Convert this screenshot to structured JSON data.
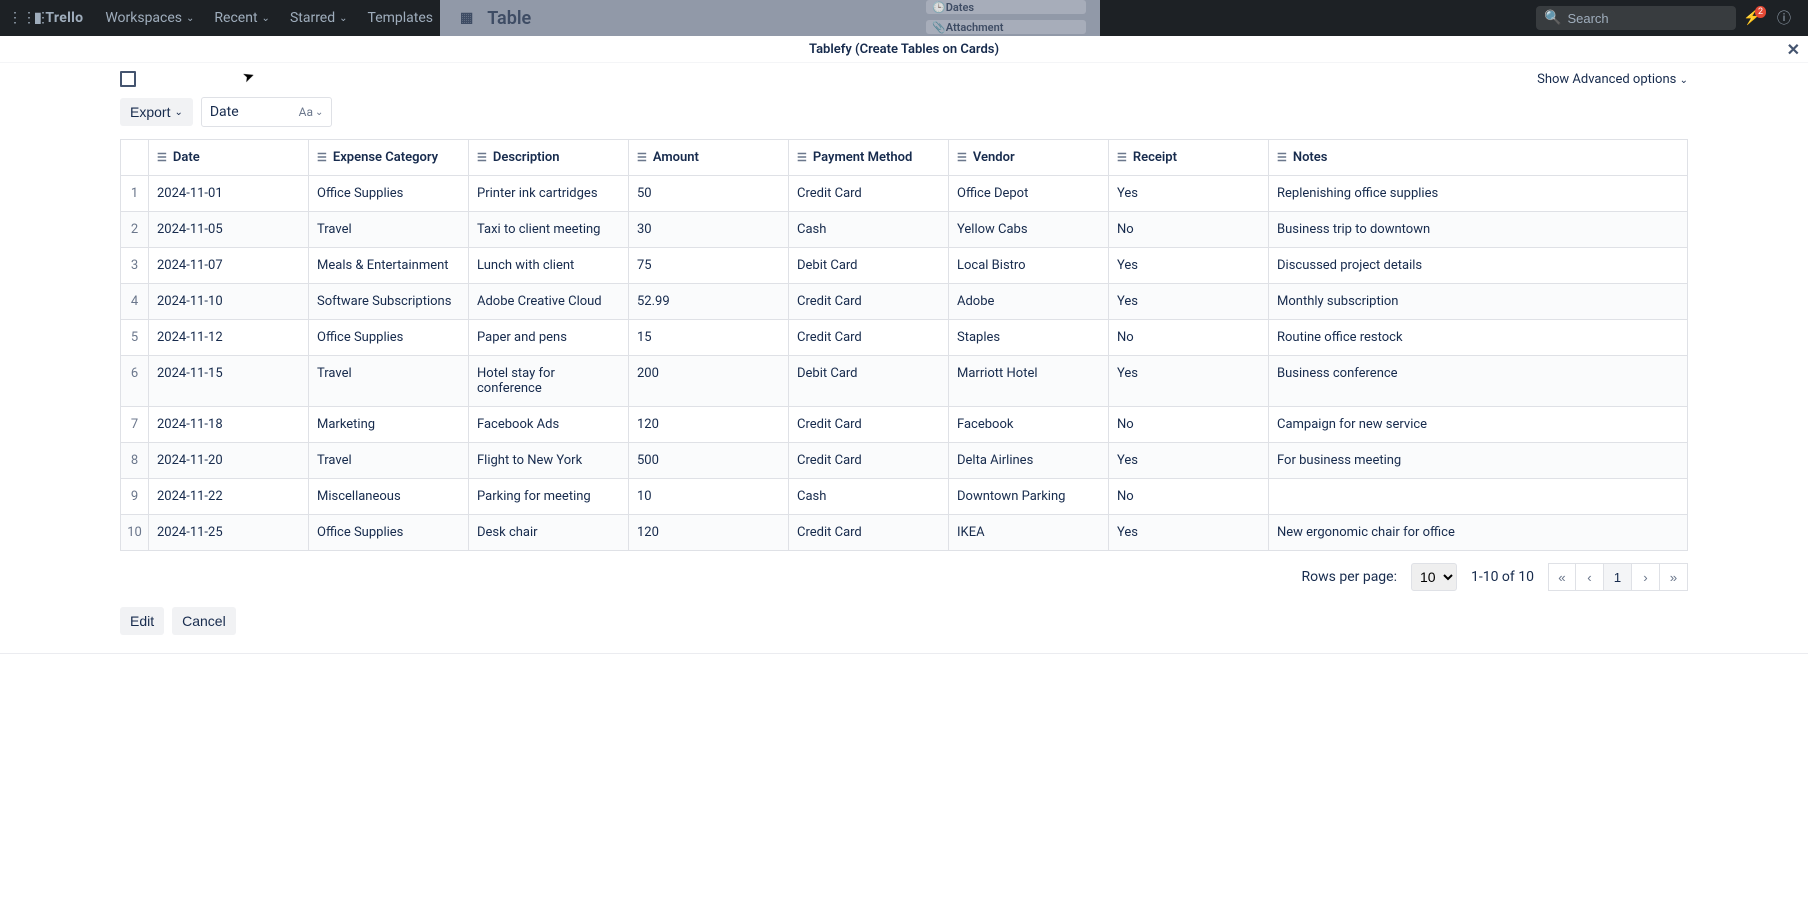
{
  "trello_nav": {
    "logo": "Trello",
    "items": [
      "Workspaces",
      "Recent",
      "Starred",
      "Templates"
    ],
    "search_placeholder": "Search",
    "notif_count": "2"
  },
  "card_peek": {
    "title": "Table",
    "side_dates": "Dates",
    "side_attachment": "Attachment"
  },
  "modal": {
    "title": "Tablefy (Create Tables on Cards)",
    "advanced": "Show Advanced options"
  },
  "controls": {
    "export": "Export",
    "field_label": "Date",
    "field_type": "Aa"
  },
  "table": {
    "columns": [
      "Date",
      "Expense Category",
      "Description",
      "Amount",
      "Payment Method",
      "Vendor",
      "Receipt",
      "Notes"
    ],
    "rows": [
      {
        "n": "1",
        "date": "2024-11-01",
        "cat": "Office Supplies",
        "desc": "Printer ink cartridges",
        "amt": "50",
        "pay": "Credit Card",
        "ven": "Office Depot",
        "rec": "Yes",
        "notes": "Replenishing office supplies"
      },
      {
        "n": "2",
        "date": "2024-11-05",
        "cat": "Travel",
        "desc": "Taxi to client meeting",
        "amt": "30",
        "pay": "Cash",
        "ven": "Yellow Cabs",
        "rec": "No",
        "notes": "Business trip to downtown"
      },
      {
        "n": "3",
        "date": "2024-11-07",
        "cat": "Meals & Entertainment",
        "desc": "Lunch with client",
        "amt": "75",
        "pay": "Debit Card",
        "ven": "Local Bistro",
        "rec": "Yes",
        "notes": "Discussed project details"
      },
      {
        "n": "4",
        "date": "2024-11-10",
        "cat": "Software Subscriptions",
        "desc": "Adobe Creative Cloud",
        "amt": "52.99",
        "pay": "Credit Card",
        "ven": "Adobe",
        "rec": "Yes",
        "notes": "Monthly subscription"
      },
      {
        "n": "5",
        "date": "2024-11-12",
        "cat": "Office Supplies",
        "desc": "Paper and pens",
        "amt": "15",
        "pay": "Credit Card",
        "ven": "Staples",
        "rec": "No",
        "notes": "Routine office restock"
      },
      {
        "n": "6",
        "date": "2024-11-15",
        "cat": "Travel",
        "desc": "Hotel stay for conference",
        "amt": "200",
        "pay": "Debit Card",
        "ven": "Marriott Hotel",
        "rec": "Yes",
        "notes": "Business conference"
      },
      {
        "n": "7",
        "date": "2024-11-18",
        "cat": "Marketing",
        "desc": "Facebook Ads",
        "amt": "120",
        "pay": "Credit Card",
        "ven": "Facebook",
        "rec": "No",
        "notes": "Campaign for new service"
      },
      {
        "n": "8",
        "date": "2024-11-20",
        "cat": "Travel",
        "desc": "Flight to New York",
        "amt": "500",
        "pay": "Credit Card",
        "ven": "Delta Airlines",
        "rec": "Yes",
        "notes": "For business meeting"
      },
      {
        "n": "9",
        "date": "2024-11-22",
        "cat": "Miscellaneous",
        "desc": "Parking for meeting",
        "amt": "10",
        "pay": "Cash",
        "ven": "Downtown Parking",
        "rec": "No",
        "notes": ""
      },
      {
        "n": "10",
        "date": "2024-11-25",
        "cat": "Office Supplies",
        "desc": "Desk chair",
        "amt": "120",
        "pay": "Credit Card",
        "ven": "IKEA",
        "rec": "Yes",
        "notes": "New ergonomic chair for office"
      }
    ]
  },
  "pagination": {
    "rows_per_page_label": "Rows per page:",
    "rows_per_page_value": "10",
    "range_text": "1-10 of 10",
    "current_page": "1"
  },
  "footer": {
    "edit": "Edit",
    "cancel": "Cancel"
  }
}
